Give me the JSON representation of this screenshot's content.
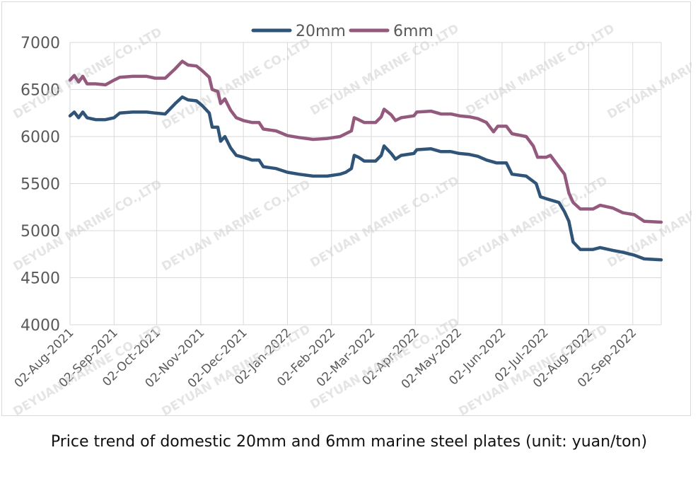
{
  "caption": "Price trend of domestic 20mm and 6mm marine steel plates (unit: yuan/ton)",
  "watermark": "DEYUAN MARINE CO.,LTD",
  "colors": {
    "s20mm": "#2f5477",
    "s6mm": "#935a7e",
    "grid": "#d9d9d9",
    "text": "#595959"
  },
  "chart_data": {
    "type": "line",
    "title": "",
    "xlabel": "",
    "ylabel": "",
    "ylim": [
      4000,
      7000
    ],
    "yticks": [
      4000,
      4500,
      5000,
      5500,
      6000,
      6500,
      7000
    ],
    "xlim": [
      "2021-08-02",
      "2022-09-22"
    ],
    "xticks": [
      "02-Aug-2021",
      "02-Sep-2021",
      "02-Oct-2021",
      "02-Nov-2021",
      "02-Dec-2021",
      "02-Jan-2022",
      "02-Feb-2022",
      "02-Mar-2022",
      "02-Apr-2022",
      "02-May-2022",
      "02-Jun-2022",
      "02-Jul-2022",
      "02-Aug-2022",
      "02-Sep-2022"
    ],
    "grid": "vertical and horizontal",
    "legend": "top-center",
    "series": [
      {
        "name": "20mm",
        "color": "#2f5477",
        "points": [
          [
            "2021-08-02",
            6220
          ],
          [
            "2021-08-05",
            6260
          ],
          [
            "2021-08-08",
            6200
          ],
          [
            "2021-08-11",
            6260
          ],
          [
            "2021-08-14",
            6200
          ],
          [
            "2021-08-20",
            6180
          ],
          [
            "2021-08-27",
            6180
          ],
          [
            "2021-09-02",
            6200
          ],
          [
            "2021-09-06",
            6250
          ],
          [
            "2021-09-15",
            6260
          ],
          [
            "2021-09-25",
            6260
          ],
          [
            "2021-10-01",
            6250
          ],
          [
            "2021-10-08",
            6240
          ],
          [
            "2021-10-15",
            6350
          ],
          [
            "2021-10-20",
            6420
          ],
          [
            "2021-10-24",
            6390
          ],
          [
            "2021-10-30",
            6380
          ],
          [
            "2021-11-03",
            6330
          ],
          [
            "2021-11-08",
            6250
          ],
          [
            "2021-11-10",
            6100
          ],
          [
            "2021-11-14",
            6100
          ],
          [
            "2021-11-16",
            5950
          ],
          [
            "2021-11-19",
            6000
          ],
          [
            "2021-11-23",
            5880
          ],
          [
            "2021-11-27",
            5800
          ],
          [
            "2021-12-02",
            5780
          ],
          [
            "2021-12-08",
            5750
          ],
          [
            "2021-12-13",
            5750
          ],
          [
            "2021-12-16",
            5680
          ],
          [
            "2021-12-25",
            5660
          ],
          [
            "2022-01-02",
            5620
          ],
          [
            "2022-01-10",
            5600
          ],
          [
            "2022-01-20",
            5580
          ],
          [
            "2022-01-30",
            5580
          ],
          [
            "2022-02-08",
            5600
          ],
          [
            "2022-02-12",
            5620
          ],
          [
            "2022-02-16",
            5660
          ],
          [
            "2022-02-18",
            5800
          ],
          [
            "2022-02-21",
            5780
          ],
          [
            "2022-02-25",
            5740
          ],
          [
            "2022-03-05",
            5740
          ],
          [
            "2022-03-09",
            5800
          ],
          [
            "2022-03-11",
            5900
          ],
          [
            "2022-03-16",
            5820
          ],
          [
            "2022-03-19",
            5760
          ],
          [
            "2022-03-23",
            5800
          ],
          [
            "2022-04-01",
            5820
          ],
          [
            "2022-04-03",
            5860
          ],
          [
            "2022-04-13",
            5870
          ],
          [
            "2022-04-20",
            5840
          ],
          [
            "2022-04-27",
            5840
          ],
          [
            "2022-05-03",
            5820
          ],
          [
            "2022-05-10",
            5810
          ],
          [
            "2022-05-16",
            5790
          ],
          [
            "2022-05-22",
            5750
          ],
          [
            "2022-05-29",
            5720
          ],
          [
            "2022-06-05",
            5720
          ],
          [
            "2022-06-09",
            5600
          ],
          [
            "2022-06-19",
            5580
          ],
          [
            "2022-06-26",
            5500
          ],
          [
            "2022-06-29",
            5360
          ],
          [
            "2022-07-03",
            5340
          ],
          [
            "2022-07-12",
            5300
          ],
          [
            "2022-07-16",
            5200
          ],
          [
            "2022-07-19",
            5100
          ],
          [
            "2022-07-22",
            4880
          ],
          [
            "2022-07-27",
            4800
          ],
          [
            "2022-08-05",
            4800
          ],
          [
            "2022-08-10",
            4820
          ],
          [
            "2022-08-19",
            4790
          ],
          [
            "2022-08-26",
            4770
          ],
          [
            "2022-09-03",
            4740
          ],
          [
            "2022-09-10",
            4700
          ],
          [
            "2022-09-22",
            4690
          ]
        ]
      },
      {
        "name": "6mm",
        "color": "#935a7e",
        "points": [
          [
            "2021-08-02",
            6600
          ],
          [
            "2021-08-05",
            6650
          ],
          [
            "2021-08-08",
            6580
          ],
          [
            "2021-08-11",
            6640
          ],
          [
            "2021-08-14",
            6560
          ],
          [
            "2021-08-20",
            6560
          ],
          [
            "2021-08-27",
            6550
          ],
          [
            "2021-09-02",
            6600
          ],
          [
            "2021-09-06",
            6630
          ],
          [
            "2021-09-15",
            6640
          ],
          [
            "2021-09-25",
            6640
          ],
          [
            "2021-10-01",
            6620
          ],
          [
            "2021-10-08",
            6620
          ],
          [
            "2021-10-15",
            6720
          ],
          [
            "2021-10-20",
            6800
          ],
          [
            "2021-10-24",
            6760
          ],
          [
            "2021-10-30",
            6750
          ],
          [
            "2021-11-03",
            6700
          ],
          [
            "2021-11-08",
            6630
          ],
          [
            "2021-11-10",
            6500
          ],
          [
            "2021-11-14",
            6480
          ],
          [
            "2021-11-16",
            6350
          ],
          [
            "2021-11-19",
            6400
          ],
          [
            "2021-11-23",
            6280
          ],
          [
            "2021-11-27",
            6200
          ],
          [
            "2021-12-02",
            6170
          ],
          [
            "2021-12-08",
            6150
          ],
          [
            "2021-12-13",
            6150
          ],
          [
            "2021-12-16",
            6080
          ],
          [
            "2021-12-25",
            6060
          ],
          [
            "2022-01-02",
            6010
          ],
          [
            "2022-01-10",
            5990
          ],
          [
            "2022-01-20",
            5970
          ],
          [
            "2022-01-30",
            5980
          ],
          [
            "2022-02-08",
            6000
          ],
          [
            "2022-02-12",
            6030
          ],
          [
            "2022-02-16",
            6060
          ],
          [
            "2022-02-18",
            6200
          ],
          [
            "2022-02-21",
            6180
          ],
          [
            "2022-02-25",
            6150
          ],
          [
            "2022-03-05",
            6150
          ],
          [
            "2022-03-09",
            6210
          ],
          [
            "2022-03-11",
            6290
          ],
          [
            "2022-03-16",
            6230
          ],
          [
            "2022-03-19",
            6170
          ],
          [
            "2022-03-23",
            6200
          ],
          [
            "2022-04-01",
            6220
          ],
          [
            "2022-04-03",
            6260
          ],
          [
            "2022-04-13",
            6270
          ],
          [
            "2022-04-20",
            6240
          ],
          [
            "2022-04-27",
            6240
          ],
          [
            "2022-05-03",
            6220
          ],
          [
            "2022-05-10",
            6210
          ],
          [
            "2022-05-16",
            6190
          ],
          [
            "2022-05-22",
            6150
          ],
          [
            "2022-05-27",
            6050
          ],
          [
            "2022-05-30",
            6110
          ],
          [
            "2022-06-05",
            6110
          ],
          [
            "2022-06-09",
            6030
          ],
          [
            "2022-06-19",
            6000
          ],
          [
            "2022-06-24",
            5900
          ],
          [
            "2022-06-27",
            5780
          ],
          [
            "2022-07-03",
            5780
          ],
          [
            "2022-07-06",
            5800
          ],
          [
            "2022-07-12",
            5680
          ],
          [
            "2022-07-16",
            5600
          ],
          [
            "2022-07-19",
            5400
          ],
          [
            "2022-07-22",
            5300
          ],
          [
            "2022-07-27",
            5230
          ],
          [
            "2022-08-05",
            5230
          ],
          [
            "2022-08-10",
            5270
          ],
          [
            "2022-08-19",
            5240
          ],
          [
            "2022-08-26",
            5190
          ],
          [
            "2022-09-03",
            5170
          ],
          [
            "2022-09-10",
            5100
          ],
          [
            "2022-09-22",
            5090
          ]
        ]
      }
    ]
  }
}
